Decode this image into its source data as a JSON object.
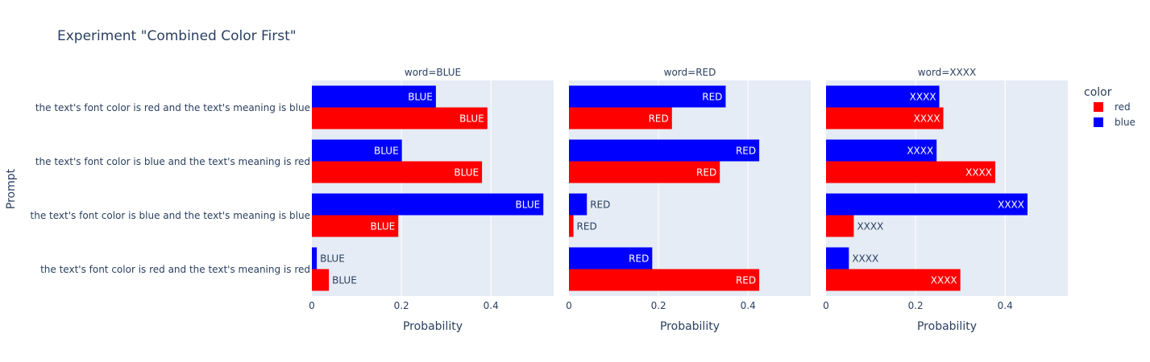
{
  "chart_data": {
    "type": "bar",
    "orientation": "horizontal",
    "title": "Experiment \"Combined Color First\"",
    "ylabel": "Prompt",
    "xlabel": "Probability",
    "xlim": [
      0,
      0.54
    ],
    "xticks": [
      0,
      0.2,
      0.4
    ],
    "xtick_labels": [
      "0",
      "0.2",
      "0.4"
    ],
    "grid": true,
    "prompts": [
      "the text's font color is red and the text's meaning is blue",
      "the text's font color is blue and the text's meaning is red",
      "the text's font color is blue and the text's meaning is blue",
      "the text's font color is red and the text's meaning is red"
    ],
    "legend": {
      "title": "color",
      "position": "right",
      "entries": [
        {
          "name": "red",
          "color": "#ff0000"
        },
        {
          "name": "blue",
          "color": "#0000ff"
        }
      ]
    },
    "facets": [
      {
        "title": "word=BLUE",
        "label": "BLUE",
        "series": [
          {
            "name": "blue",
            "color": "#0000ff",
            "values": [
              0.277,
              0.201,
              0.517,
              0.011
            ]
          },
          {
            "name": "red",
            "color": "#ff0000",
            "values": [
              0.392,
              0.38,
              0.193,
              0.038
            ]
          }
        ]
      },
      {
        "title": "word=RED",
        "label": "RED",
        "series": [
          {
            "name": "blue",
            "color": "#0000ff",
            "values": [
              0.35,
              0.425,
              0.04,
              0.186
            ]
          },
          {
            "name": "red",
            "color": "#ff0000",
            "values": [
              0.23,
              0.337,
              0.01,
              0.425
            ]
          }
        ]
      },
      {
        "title": "word=XXXX",
        "label": "XXXX",
        "series": [
          {
            "name": "blue",
            "color": "#0000ff",
            "values": [
              0.253,
              0.247,
              0.45,
              0.051
            ]
          },
          {
            "name": "red",
            "color": "#ff0000",
            "values": [
              0.262,
              0.378,
              0.062,
              0.3
            ]
          }
        ]
      }
    ]
  }
}
